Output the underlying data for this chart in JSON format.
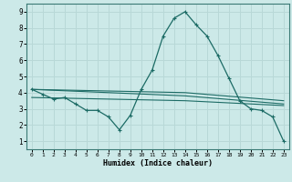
{
  "xlabel": "Humidex (Indice chaleur)",
  "xlim": [
    -0.5,
    23.5
  ],
  "ylim": [
    0.5,
    9.5
  ],
  "xticks": [
    0,
    1,
    2,
    3,
    4,
    5,
    6,
    7,
    8,
    9,
    10,
    11,
    12,
    13,
    14,
    15,
    16,
    17,
    18,
    19,
    20,
    21,
    22,
    23
  ],
  "yticks": [
    1,
    2,
    3,
    4,
    5,
    6,
    7,
    8,
    9
  ],
  "bg_color": "#cce9e8",
  "grid_color": "#b8d8d7",
  "line_color": "#1c6b65",
  "main_line_x": [
    0,
    1,
    2,
    3,
    4,
    5,
    6,
    7,
    8,
    9,
    10,
    11,
    12,
    13,
    14,
    15,
    16,
    17,
    18,
    19,
    20,
    21,
    22,
    23
  ],
  "main_line_y": [
    4.2,
    3.9,
    3.6,
    3.7,
    3.3,
    2.9,
    2.9,
    2.5,
    1.7,
    2.6,
    4.2,
    5.4,
    7.5,
    8.6,
    9.0,
    8.2,
    7.5,
    6.3,
    4.9,
    3.5,
    3.0,
    2.9,
    2.5,
    1.0
  ],
  "flat_line1_x": [
    0,
    14,
    23
  ],
  "flat_line1_y": [
    4.2,
    4.0,
    3.5
  ],
  "flat_line2_x": [
    0,
    14,
    23
  ],
  "flat_line2_y": [
    4.2,
    3.8,
    3.3
  ],
  "flat_line3_x": [
    0,
    14,
    23
  ],
  "flat_line3_y": [
    3.7,
    3.5,
    3.2
  ],
  "marker": "+"
}
